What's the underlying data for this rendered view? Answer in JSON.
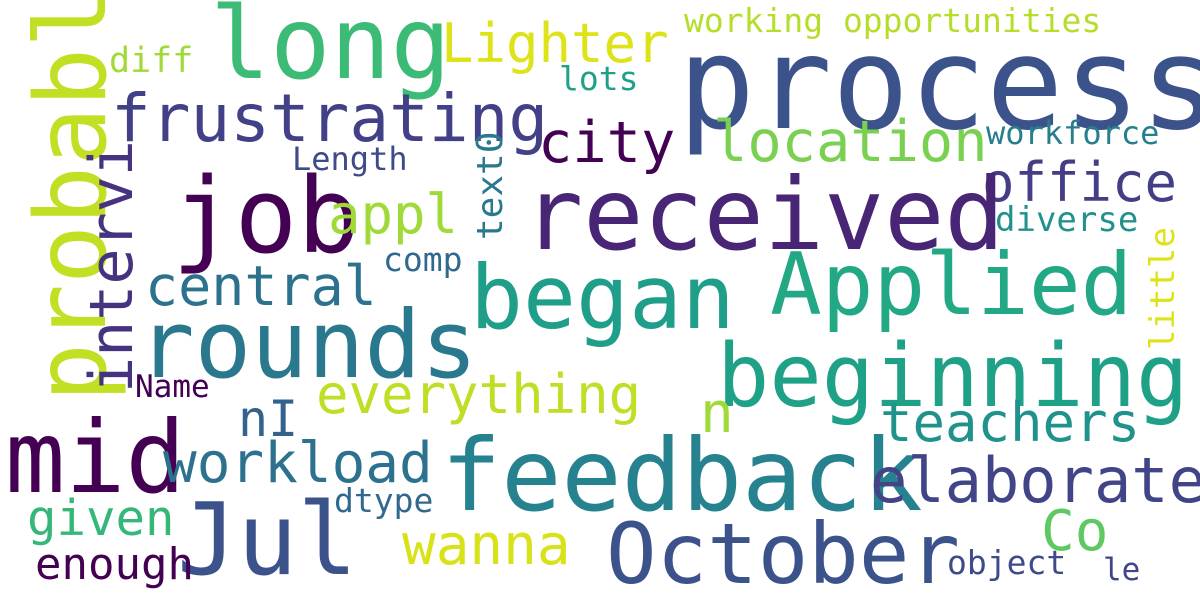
{
  "words": [
    {
      "text": "process",
      "color": "#3b528b"
    },
    {
      "text": "long",
      "color": "#3bbb75"
    },
    {
      "text": "Lighter",
      "color": "#dde318"
    },
    {
      "text": "working opportunities",
      "color": "#b5de2b"
    },
    {
      "text": "diff",
      "color": "#a0da39"
    },
    {
      "text": "lots",
      "color": "#1fa187"
    },
    {
      "text": "probably",
      "color": "#c2df23"
    },
    {
      "text": "frustrating",
      "color": "#424086"
    },
    {
      "text": "city",
      "color": "#440154"
    },
    {
      "text": "location",
      "color": "#7ad151"
    },
    {
      "text": "workforce",
      "color": "#277f8e"
    },
    {
      "text": "Length",
      "color": "#3e4a89"
    },
    {
      "text": "office",
      "color": "#433e85"
    },
    {
      "text": "intervi",
      "color": "#46327e"
    },
    {
      "text": "text0",
      "color": "#2a788e"
    },
    {
      "text": "job",
      "color": "#440154"
    },
    {
      "text": "received",
      "color": "#482575"
    },
    {
      "text": "appl",
      "color": "#a0da39"
    },
    {
      "text": "diverse",
      "color": "#21918c"
    },
    {
      "text": "little",
      "color": "#dde318"
    },
    {
      "text": "comp",
      "color": "#31688e"
    },
    {
      "text": "central",
      "color": "#2c728e"
    },
    {
      "text": "Applied",
      "color": "#22a884"
    },
    {
      "text": "began",
      "color": "#1f9e89"
    },
    {
      "text": "rounds",
      "color": "#2a788e"
    },
    {
      "text": "beginning",
      "color": "#1fa187"
    },
    {
      "text": "Name",
      "color": "#440154"
    },
    {
      "text": "everything",
      "color": "#bddf26"
    },
    {
      "text": "nI",
      "color": "#33638d"
    },
    {
      "text": "n",
      "color": "#a0da39"
    },
    {
      "text": "teachers",
      "color": "#20928c"
    },
    {
      "text": "mid",
      "color": "#440154"
    },
    {
      "text": "workload",
      "color": "#2c728e"
    },
    {
      "text": "feedback",
      "color": "#26828e"
    },
    {
      "text": "elaborate",
      "color": "#414487"
    },
    {
      "text": "dtype",
      "color": "#31688e"
    },
    {
      "text": "given",
      "color": "#35b779"
    },
    {
      "text": "Jul",
      "color": "#3b528b"
    },
    {
      "text": "Co",
      "color": "#5ec962"
    },
    {
      "text": "wanna",
      "color": "#d8e219"
    },
    {
      "text": "October",
      "color": "#3b528b"
    },
    {
      "text": "enough",
      "color": "#440154"
    },
    {
      "text": "object",
      "color": "#3e4a89"
    },
    {
      "text": "le",
      "color": "#404688"
    }
  ]
}
